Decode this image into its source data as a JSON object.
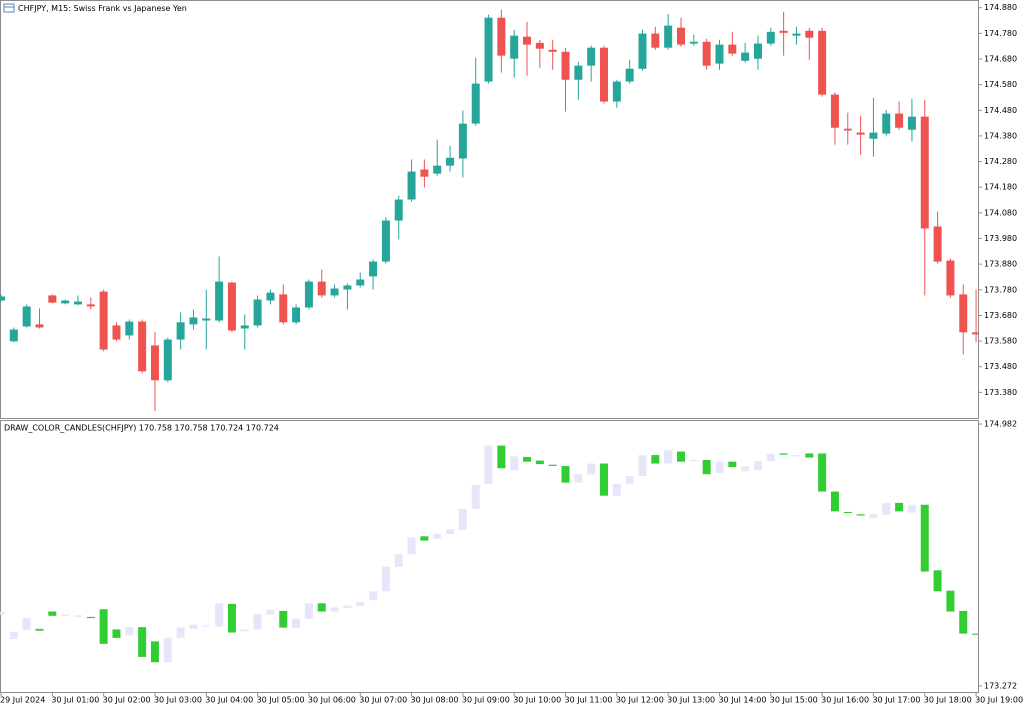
{
  "chart_data": [
    {
      "type": "candlestick",
      "title": "CHFJPY, M15:  Swiss Frank vs Japanese Yen",
      "categories": [
        "29 Jul 2024",
        null,
        null,
        null,
        "30 Jul 01:00",
        null,
        null,
        null,
        "30 Jul 02:00",
        null,
        null,
        null,
        "30 Jul 03:00",
        null,
        null,
        null,
        "30 Jul 04:00",
        null,
        null,
        null,
        "30 Jul 05:00",
        null,
        null,
        null,
        "30 Jul 06:00",
        null,
        null,
        null,
        "30 Jul 07:00",
        null,
        null,
        null,
        "30 Jul 08:00",
        null,
        null,
        null,
        "30 Jul 09:00",
        null,
        null,
        null,
        "30 Jul 10:00",
        null,
        null,
        null,
        "30 Jul 11:00",
        null,
        null,
        null,
        "30 Jul 12:00",
        null,
        null,
        null,
        "30 Jul 13:00",
        null,
        null,
        null,
        "30 Jul 14:00",
        null,
        null,
        null,
        "30 Jul 15:00",
        null,
        null,
        null,
        "30 Jul 16:00",
        null,
        null,
        null,
        "30 Jul 17:00",
        null,
        null,
        null,
        "30 Jul 18:00",
        null,
        null,
        null,
        "30 Jul 19:00"
      ],
      "open": [
        173.738,
        173.579,
        173.637,
        173.645,
        173.758,
        173.727,
        173.723,
        173.723,
        173.773,
        173.641,
        173.602,
        173.656,
        173.563,
        173.427,
        173.586,
        173.645,
        173.66,
        173.66,
        173.808,
        173.629,
        173.641,
        173.738,
        173.762,
        173.653,
        173.711,
        173.812,
        173.758,
        173.781,
        173.797,
        173.832,
        173.89,
        174.05,
        174.132,
        174.249,
        174.233,
        174.264,
        174.292,
        174.428,
        174.592,
        174.841,
        174.681,
        174.767,
        174.743,
        174.716,
        174.708,
        174.599,
        174.654,
        174.724,
        174.514,
        174.592,
        174.642,
        174.779,
        174.724,
        174.802,
        174.74,
        174.747,
        174.662,
        174.736,
        174.673,
        174.681,
        174.74,
        174.79,
        174.771,
        174.79,
        174.79,
        174.541,
        174.408,
        174.393,
        174.369,
        174.389,
        174.467,
        174.404,
        174.455,
        174.027,
        173.894,
        173.762,
        173.614
      ],
      "high": [
        173.762,
        173.633,
        173.723,
        173.707,
        173.762,
        173.742,
        173.758,
        173.75,
        173.781,
        173.653,
        173.664,
        173.664,
        173.614,
        173.594,
        173.692,
        173.703,
        173.781,
        173.91,
        173.812,
        173.684,
        173.758,
        173.781,
        173.801,
        173.723,
        173.82,
        173.859,
        173.801,
        173.805,
        173.847,
        173.898,
        174.062,
        174.147,
        174.288,
        174.288,
        174.366,
        174.342,
        174.479,
        174.685,
        174.853,
        174.872,
        174.794,
        174.825,
        174.755,
        174.755,
        174.724,
        174.669,
        174.732,
        174.732,
        174.599,
        174.677,
        174.794,
        174.806,
        174.856,
        174.841,
        174.775,
        174.759,
        174.755,
        174.786,
        174.743,
        174.771,
        174.802,
        174.864,
        174.806,
        174.802,
        174.802,
        174.549,
        174.471,
        174.459,
        174.529,
        174.482,
        174.514,
        174.525,
        174.521,
        174.085,
        173.902,
        173.801,
        173.781
      ],
      "low": [
        173.734,
        173.575,
        173.633,
        173.629,
        173.727,
        173.723,
        173.719,
        173.703,
        173.54,
        173.579,
        173.586,
        173.454,
        173.306,
        173.419,
        173.547,
        173.625,
        173.547,
        173.653,
        173.614,
        173.547,
        173.633,
        173.723,
        173.645,
        173.645,
        173.703,
        173.75,
        173.75,
        173.703,
        173.789,
        173.781,
        173.882,
        173.976,
        174.124,
        174.179,
        174.225,
        174.241,
        174.218,
        174.42,
        174.584,
        174.627,
        174.607,
        174.615,
        174.646,
        174.638,
        174.475,
        174.521,
        174.592,
        174.506,
        174.49,
        174.584,
        174.634,
        174.716,
        174.716,
        174.728,
        174.732,
        174.638,
        174.638,
        174.693,
        174.666,
        174.638,
        174.732,
        174.693,
        174.736,
        174.677,
        174.533,
        174.346,
        174.346,
        174.307,
        174.299,
        174.381,
        174.404,
        174.358,
        173.758,
        173.882,
        173.75,
        173.528,
        173.575
      ],
      "close": [
        173.754,
        173.625,
        173.715,
        173.633,
        173.73,
        173.738,
        173.734,
        173.715,
        173.547,
        173.586,
        173.656,
        173.462,
        173.427,
        173.586,
        173.653,
        173.672,
        173.668,
        173.812,
        173.621,
        173.641,
        173.742,
        173.769,
        173.653,
        173.711,
        173.812,
        173.758,
        173.785,
        173.797,
        173.82,
        173.89,
        174.05,
        174.132,
        174.241,
        174.221,
        174.264,
        174.295,
        174.428,
        174.584,
        174.841,
        174.693,
        174.771,
        174.736,
        174.72,
        174.708,
        174.599,
        174.654,
        174.724,
        174.514,
        174.592,
        174.642,
        174.779,
        174.724,
        174.81,
        174.736,
        174.747,
        174.654,
        174.736,
        174.701,
        174.705,
        174.74,
        174.786,
        174.782,
        174.779,
        174.763,
        174.541,
        174.412,
        174.401,
        174.385,
        174.393,
        174.467,
        174.412,
        174.455,
        174.019,
        173.89,
        173.758,
        173.614,
        173.606
      ],
      "ylim": [
        173.28,
        174.91
      ],
      "yticks": [
        {
          "value": 173.38,
          "label": "173.380"
        },
        {
          "value": 173.48,
          "label": "173.480"
        },
        {
          "value": 173.58,
          "label": "173.580"
        },
        {
          "value": 173.68,
          "label": "173.680"
        },
        {
          "value": 173.78,
          "label": "173.780"
        },
        {
          "value": 173.88,
          "label": "173.880"
        },
        {
          "value": 173.98,
          "label": "173.980"
        },
        {
          "value": 174.08,
          "label": "174.080"
        },
        {
          "value": 174.18,
          "label": "174.180"
        },
        {
          "value": 174.28,
          "label": "174.280"
        },
        {
          "value": 174.38,
          "label": "174.380"
        },
        {
          "value": 174.48,
          "label": "174.480"
        },
        {
          "value": 174.58,
          "label": "174.580"
        },
        {
          "value": 174.68,
          "label": "174.680"
        },
        {
          "value": 174.78,
          "label": "174.780"
        },
        {
          "value": 174.88,
          "label": "174.880"
        }
      ],
      "up_color": "#26a69a",
      "down_color": "#ef5350",
      "grid": false
    },
    {
      "type": "color-candles",
      "title": "DRAW_COLOR_CANDLES(CHFJPY) 170.758 170.758 170.724 170.724",
      "ylim": [
        173.272,
        174.982
      ],
      "yticks": [
        {
          "value": 174.982,
          "label": "174.982"
        },
        {
          "value": 173.272,
          "label": "173.272"
        }
      ],
      "up_color": "#e6e6fa",
      "down_color": "#32cd32"
    }
  ]
}
